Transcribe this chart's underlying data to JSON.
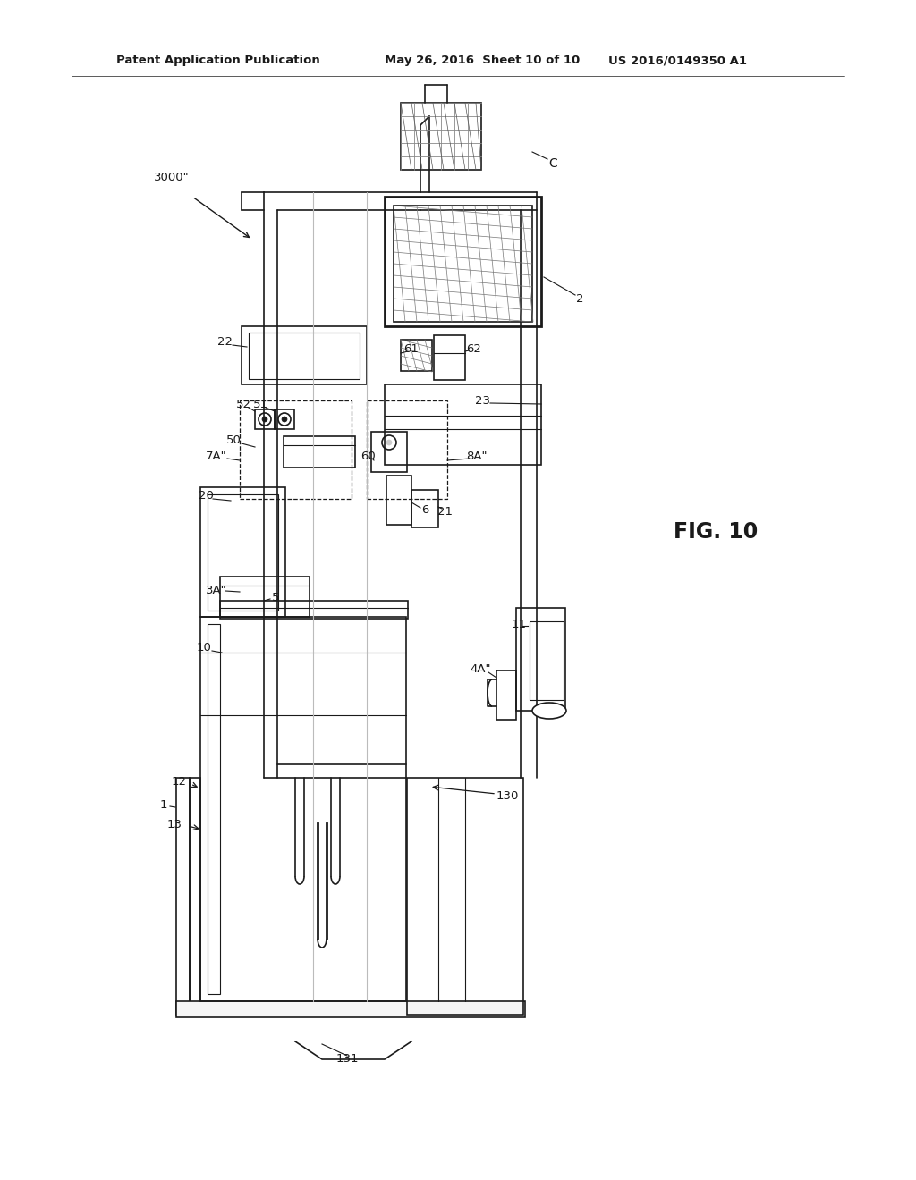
{
  "bg_color": "#ffffff",
  "line_color": "#1a1a1a",
  "header_left": "Patent Application Publication",
  "header_mid": "May 26, 2016  Sheet 10 of 10",
  "header_right": "US 2016/0149350 A1",
  "fig_label": "FIG. 10",
  "labels": {
    "3000pp": "3000\"",
    "C": "C",
    "2": "2",
    "22": "22",
    "52": "52",
    "51": "51",
    "61": "61",
    "62": "62",
    "50": "50",
    "7App": "7A\"",
    "60": "60",
    "8App": "8A\"",
    "23": "23",
    "20": "20",
    "6": "6",
    "21": "21",
    "5": "5",
    "3App": "3A\"",
    "10": "10",
    "4App": "4A\"",
    "11": "11",
    "130": "130",
    "12": "12",
    "1": "1",
    "13": "13",
    "131": "131"
  }
}
